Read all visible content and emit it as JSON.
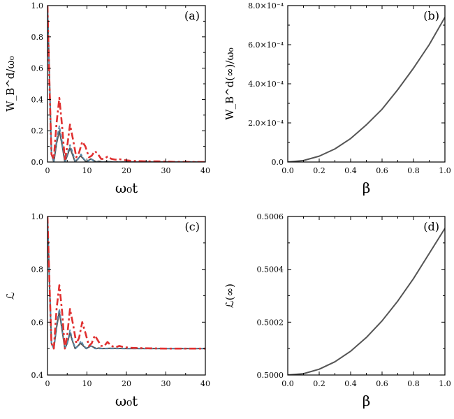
{
  "chart_data": [
    {
      "type": "line",
      "panel": "(a)",
      "xlabel": "ω₀t",
      "ylabel": "W_B^d/ω₀",
      "xlim": [
        0,
        40
      ],
      "ylim": [
        0,
        1.0
      ],
      "xticks": [
        "0",
        "10",
        "20",
        "30",
        "40"
      ],
      "yticks": [
        "0.0",
        "0.2",
        "0.4",
        "0.6",
        "0.8",
        "1.0"
      ],
      "series": [
        {
          "style": "solid",
          "color": "#555555",
          "x": [
            0,
            0.5,
            1.0,
            1.6,
            2.3,
            3.0,
            3.7,
            4.4,
            5.0,
            5.7,
            6.3,
            7.0,
            7.7,
            8.4,
            9.1,
            9.8,
            10.4,
            11.0,
            11.7,
            12.4,
            13.0,
            14.0,
            15.0,
            17.0,
            20.0,
            40.0
          ],
          "y": [
            1.0,
            0.55,
            0.05,
            0.0,
            0.12,
            0.2,
            0.11,
            0.0,
            0.04,
            0.09,
            0.05,
            0.0,
            0.02,
            0.04,
            0.02,
            0.0,
            0.01,
            0.02,
            0.01,
            0.0,
            0.005,
            0.0,
            0.003,
            0.0,
            0.0,
            0.0
          ]
        },
        {
          "style": "dashdot",
          "color": "#e03030",
          "x": [
            0,
            0.5,
            1.0,
            1.6,
            2.3,
            3.0,
            3.7,
            4.4,
            5.0,
            5.7,
            6.5,
            7.3,
            8.0,
            8.8,
            9.6,
            10.5,
            11.2,
            12.0,
            12.8,
            13.6,
            14.4,
            15.2,
            16.2,
            17.2,
            18.2,
            19.5,
            21.0,
            23.0,
            25.0,
            28.0,
            30.0,
            32.0,
            40.0
          ],
          "y": [
            1.0,
            0.5,
            0.05,
            0.02,
            0.25,
            0.41,
            0.23,
            0.01,
            0.1,
            0.24,
            0.14,
            0.03,
            0.06,
            0.13,
            0.1,
            0.03,
            0.04,
            0.07,
            0.05,
            0.02,
            0.02,
            0.035,
            0.02,
            0.015,
            0.018,
            0.012,
            0.008,
            0.006,
            0.004,
            0.004,
            0.003,
            0.001,
            0.0
          ]
        },
        {
          "style": "dash",
          "color": "#5588aa",
          "x": [
            0,
            0.5,
            1.0,
            1.6,
            2.3,
            3.0,
            3.7,
            4.4,
            5.0,
            5.7,
            6.4,
            7.1,
            7.8,
            8.5,
            9.2,
            10.0,
            11.0,
            12.0,
            14.0,
            40.0
          ],
          "y": [
            1.0,
            0.53,
            0.05,
            0.0,
            0.14,
            0.23,
            0.13,
            0.0,
            0.05,
            0.11,
            0.06,
            0.0,
            0.02,
            0.05,
            0.02,
            0.0,
            0.02,
            0.0,
            0.0,
            0.0
          ]
        }
      ]
    },
    {
      "type": "line",
      "panel": "(b)",
      "xlabel": "β",
      "ylabel": "W_B^d(∞)/ω₀",
      "xlim": [
        0,
        1.0
      ],
      "ylim": [
        0,
        0.0008
      ],
      "xticks": [
        "0.0",
        "0.2",
        "0.4",
        "0.6",
        "0.8",
        "1.0"
      ],
      "yticks": [
        "0.0",
        "2.0×10⁻⁴",
        "4.0×10⁻⁴",
        "6.0×10⁻⁴",
        "8.0×10⁻⁴"
      ],
      "series": [
        {
          "style": "solid",
          "color": "#555555",
          "x": [
            0,
            0.1,
            0.2,
            0.3,
            0.4,
            0.5,
            0.6,
            0.7,
            0.8,
            0.9,
            1.0
          ],
          "y": [
            0.0,
            7.5e-06,
            3e-05,
            6.7e-05,
            0.00012,
            0.00019,
            0.00027,
            0.00037,
            0.00048,
            0.0006,
            0.00074
          ]
        }
      ]
    },
    {
      "type": "line",
      "panel": "(c)",
      "xlabel": "ω₀t",
      "ylabel": "ℒ",
      "xlim": [
        0,
        40
      ],
      "ylim": [
        0.4,
        1.0
      ],
      "xticks": [
        "0",
        "10",
        "20",
        "30",
        "40"
      ],
      "yticks": [
        "0.4",
        "0.6",
        "0.8",
        "1.0"
      ],
      "series": [
        {
          "style": "solid",
          "color": "#555555",
          "x": [
            0,
            0.5,
            1.0,
            1.6,
            2.3,
            3.0,
            3.7,
            4.4,
            5.0,
            5.7,
            6.3,
            7.0,
            7.7,
            8.4,
            9.1,
            9.8,
            10.4,
            11.0,
            11.7,
            12.4,
            13.0,
            14.0,
            16.0,
            20.0,
            40.0
          ],
          "y": [
            1.0,
            0.75,
            0.52,
            0.5,
            0.58,
            0.64,
            0.57,
            0.5,
            0.52,
            0.56,
            0.53,
            0.5,
            0.51,
            0.52,
            0.51,
            0.5,
            0.505,
            0.51,
            0.505,
            0.5,
            0.502,
            0.5,
            0.501,
            0.5,
            0.5
          ]
        },
        {
          "style": "dashdot",
          "color": "#e03030",
          "x": [
            0,
            0.5,
            1.0,
            1.6,
            2.3,
            3.0,
            3.7,
            4.4,
            5.0,
            5.7,
            6.5,
            7.3,
            8.0,
            8.8,
            9.6,
            10.5,
            11.2,
            12.0,
            12.8,
            13.6,
            14.4,
            15.2,
            16.2,
            17.2,
            18.2,
            19.5,
            21.0,
            23.0,
            26.0,
            30.0,
            40.0
          ],
          "y": [
            1.0,
            0.75,
            0.52,
            0.5,
            0.65,
            0.74,
            0.64,
            0.5,
            0.55,
            0.65,
            0.59,
            0.52,
            0.54,
            0.6,
            0.56,
            0.51,
            0.52,
            0.55,
            0.53,
            0.51,
            0.51,
            0.525,
            0.51,
            0.505,
            0.51,
            0.505,
            0.503,
            0.502,
            0.501,
            0.5,
            0.5
          ]
        },
        {
          "style": "dash",
          "color": "#5588aa",
          "x": [
            0,
            0.5,
            1.0,
            1.6,
            2.3,
            3.0,
            3.7,
            4.4,
            5.0,
            5.7,
            6.4,
            7.1,
            7.8,
            8.5,
            9.2,
            10.0,
            11.0,
            12.0,
            14.0,
            40.0
          ],
          "y": [
            1.0,
            0.76,
            0.52,
            0.5,
            0.59,
            0.65,
            0.58,
            0.5,
            0.52,
            0.57,
            0.53,
            0.5,
            0.51,
            0.53,
            0.51,
            0.5,
            0.51,
            0.5,
            0.5,
            0.5
          ]
        }
      ]
    },
    {
      "type": "line",
      "panel": "(d)",
      "xlabel": "β",
      "ylabel": "ℒ(∞)",
      "xlim": [
        0,
        1.0
      ],
      "ylim": [
        0.5,
        0.5006
      ],
      "xticks": [
        "0.0",
        "0.2",
        "0.4",
        "0.6",
        "0.8",
        "1.0"
      ],
      "yticks": [
        "0.5000",
        "0.5002",
        "0.5004",
        "0.5006"
      ],
      "series": [
        {
          "style": "solid",
          "color": "#555555",
          "x": [
            0,
            0.1,
            0.2,
            0.3,
            0.4,
            0.5,
            0.6,
            0.7,
            0.8,
            0.9,
            1.0
          ],
          "y": [
            0.5,
            0.500005,
            0.500022,
            0.50005,
            0.50009,
            0.500142,
            0.500205,
            0.50028,
            0.500365,
            0.50046,
            0.500555
          ]
        }
      ]
    }
  ]
}
